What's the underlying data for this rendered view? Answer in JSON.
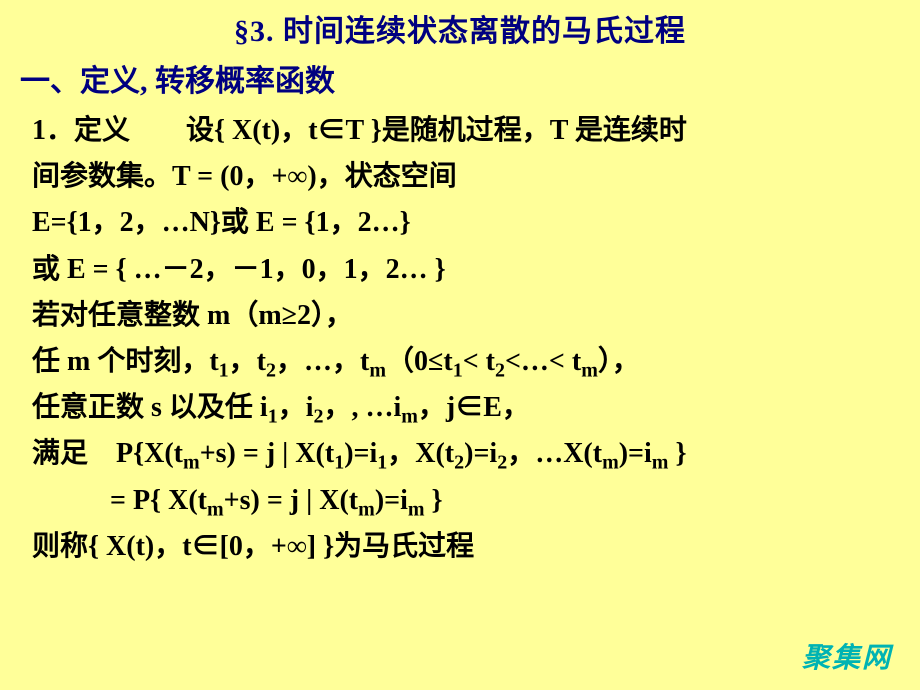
{
  "title": "§3.  时间连续状态离散的马氏过程",
  "section_header": "一、定义, 转移概率函数",
  "lines": {
    "l1": "1．定义　　设{ X(t)，t∈T }是随机过程，T 是连续时",
    "l2": "间参数集。T = (0，+∞)，状态空间",
    "l3": "E={1，2，…N}或 E = {1，2…}",
    "l4": "或 E = {  …－2，－1，0，1，2…  }",
    "l5a": "若对任意整数 m（m≥2），",
    "l6_prefix": "任 m 个时刻，t",
    "l6_t2": "，t",
    "l6_dots": "，…，t",
    "l6_cond": "（0≤t",
    "l6_lt1": "< t",
    "l6_lt2": "<…< t",
    "l6_end": "），",
    "l7_prefix": "任意正数 s 以及任 i",
    "l7_i2": "，i",
    "l7_dots": "，, …i",
    "l7_end": "，j∈E，",
    "l8_prefix": "满足　P{X(t",
    "l8_plus": "+s) = j | X(t",
    "l8_eq1": ")=i",
    "l8_c1": "，X(t",
    "l8_eq2": ")=i",
    "l8_c2": "，…X(t",
    "l8_eqm": ")=i",
    "l8_end": " }",
    "l9_prefix": "= P{ X(t",
    "l9_plus": "+s) = j | X(t",
    "l9_eqm": ")=i",
    "l9_end": " }",
    "l10": "则称{ X(t)，t∈[0，+∞] }为马氏过程"
  },
  "subs": {
    "s1": "1",
    "s2": "2",
    "sm": "m"
  },
  "watermark": "聚集网",
  "colors": {
    "bg": "#ffff99",
    "heading": "#000080",
    "text": "#000000",
    "watermark": "#00b3b3"
  }
}
